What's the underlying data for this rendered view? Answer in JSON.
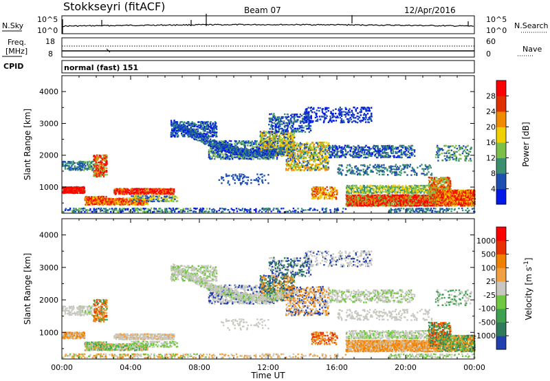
{
  "header": {
    "station": "Stokkseyri (fitACF)",
    "beam": "Beam 07",
    "date": "12/Apr/2016"
  },
  "panels": {
    "nsky_label": "N.Sky",
    "nsky_ticks": [
      "10^5",
      "10^0"
    ],
    "nsearch_label": "N.Search",
    "freq_label_line1": "Freq.",
    "freq_label_line2": "[MHz]",
    "freq_ticks": [
      "18",
      "8"
    ],
    "nave_ticks": [
      "60",
      "0"
    ],
    "nave_label": "Nave",
    "cpid_label": "CPID",
    "cpid_value": "normal (fast) 151"
  },
  "chart_data": [
    {
      "type": "heatmap",
      "title": "",
      "xlabel": "",
      "ylabel": "Slant Range [km]",
      "x_ticks": [
        "00:00",
        "04:00",
        "08:00",
        "12:00",
        "16:00",
        "20:00",
        "00:00"
      ],
      "y_ticks": [
        "1000",
        "2000",
        "3000",
        "4000"
      ],
      "xlim_hours": [
        0,
        24
      ],
      "ylim_km": [
        180,
        4500
      ],
      "colorbar": {
        "label": "Power [dB]",
        "ticks": [
          "4",
          "8",
          "12",
          "16",
          "20",
          "24",
          "28"
        ],
        "colors": [
          "#0018e8",
          "#1d4fb0",
          "#3a8f70",
          "#7cc04a",
          "#f0d000",
          "#f08a00",
          "#e03000",
          "#ff0000"
        ]
      }
    },
    {
      "type": "heatmap",
      "title": "",
      "xlabel": "Time UT",
      "ylabel": "Slant Range [km]",
      "x_ticks": [
        "00:00",
        "04:00",
        "08:00",
        "12:00",
        "16:00",
        "20:00",
        "00:00"
      ],
      "y_ticks": [
        "1000",
        "2000",
        "3000",
        "4000"
      ],
      "xlim_hours": [
        0,
        24
      ],
      "ylim_km": [
        180,
        4500
      ],
      "colorbar": {
        "label": "Velocity [m s^-1]",
        "ticks": [
          "1000",
          "500",
          "100",
          "25",
          "-25",
          "-100",
          "-500",
          "-1000"
        ],
        "colors": [
          "#2040b0",
          "#2e7a5a",
          "#3fa050",
          "#70c840",
          "#c8c8c0",
          "#f0a040",
          "#f08000",
          "#e83000",
          "#ff0000"
        ]
      }
    }
  ]
}
